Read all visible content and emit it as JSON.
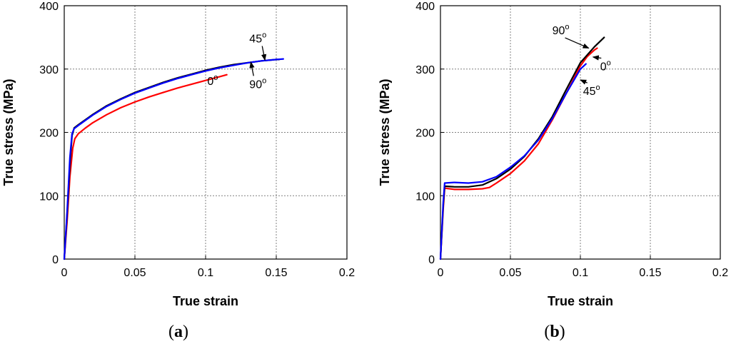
{
  "chart_data": [
    {
      "type": "line",
      "panel_label": "a",
      "xlabel": "True strain",
      "ylabel": "True stress (MPa)",
      "xlim": [
        0,
        0.2
      ],
      "ylim": [
        0,
        400
      ],
      "xticks": [
        0,
        0.05,
        0.1,
        0.15,
        0.2
      ],
      "xtick_labels": [
        "0",
        "0.05",
        "0.1",
        "0.15",
        "0.2"
      ],
      "yticks": [
        0,
        100,
        200,
        300,
        400
      ],
      "ytick_labels": [
        "0",
        "100",
        "200",
        "300",
        "400"
      ],
      "grid": true,
      "series": [
        {
          "name": "0",
          "color": "#ff0000",
          "points": [
            [
              0,
              0
            ],
            [
              0.002,
              60
            ],
            [
              0.004,
              130
            ],
            [
              0.006,
              175
            ],
            [
              0.0075,
              190
            ],
            [
              0.01,
              198
            ],
            [
              0.015,
              207
            ],
            [
              0.02,
              215
            ],
            [
              0.03,
              228
            ],
            [
              0.04,
              239
            ],
            [
              0.05,
              248
            ],
            [
              0.06,
              256
            ],
            [
              0.07,
              263
            ],
            [
              0.08,
              270
            ],
            [
              0.09,
              276
            ],
            [
              0.1,
              282
            ],
            [
              0.11,
              288
            ],
            [
              0.115,
              291
            ]
          ]
        },
        {
          "name": "90",
          "color": "#000000",
          "points": [
            [
              0,
              0
            ],
            [
              0.002,
              70
            ],
            [
              0.004,
              150
            ],
            [
              0.0055,
              195
            ],
            [
              0.007,
              207
            ],
            [
              0.01,
              212
            ],
            [
              0.02,
              228
            ],
            [
              0.03,
              242
            ],
            [
              0.04,
              253
            ],
            [
              0.05,
              263
            ],
            [
              0.06,
              271
            ],
            [
              0.07,
              279
            ],
            [
              0.08,
              286
            ],
            [
              0.09,
              292
            ],
            [
              0.1,
              298
            ],
            [
              0.11,
              303
            ],
            [
              0.12,
              307
            ],
            [
              0.13,
              310
            ],
            [
              0.14,
              313
            ],
            [
              0.15,
              315
            ],
            [
              0.152,
              315
            ]
          ]
        },
        {
          "name": "45",
          "color": "#0000ff",
          "points": [
            [
              0,
              0
            ],
            [
              0.002,
              75
            ],
            [
              0.004,
              160
            ],
            [
              0.0055,
              198
            ],
            [
              0.007,
              206
            ],
            [
              0.01,
              211
            ],
            [
              0.02,
              227
            ],
            [
              0.03,
              241
            ],
            [
              0.04,
              252
            ],
            [
              0.05,
              262
            ],
            [
              0.06,
              270
            ],
            [
              0.07,
              278
            ],
            [
              0.08,
              285
            ],
            [
              0.09,
              291
            ],
            [
              0.1,
              297
            ],
            [
              0.11,
              302
            ],
            [
              0.12,
              306
            ],
            [
              0.13,
              310
            ],
            [
              0.14,
              313
            ],
            [
              0.15,
              315
            ],
            [
              0.155,
              316
            ]
          ]
        }
      ],
      "annotations": [
        {
          "label": "45",
          "superscript": "o",
          "x": 0.137,
          "y": 342,
          "arrow_to": [
            0.142,
            314
          ]
        },
        {
          "label": "90",
          "superscript": "o",
          "x": 0.137,
          "y": 270,
          "arrow_to": [
            0.132,
            311
          ]
        },
        {
          "label": "0",
          "superscript": "o",
          "x": 0.105,
          "y": 275
        }
      ]
    },
    {
      "type": "line",
      "panel_label": "b",
      "xlabel": "True strain",
      "ylabel": "True stress (MPa)",
      "xlim": [
        0,
        0.2
      ],
      "ylim": [
        0,
        400
      ],
      "xticks": [
        0,
        0.05,
        0.1,
        0.15,
        0.2
      ],
      "xtick_labels": [
        "0",
        "0.05",
        "0.1",
        "0.15",
        "0.2"
      ],
      "yticks": [
        0,
        100,
        200,
        300,
        400
      ],
      "ytick_labels": [
        "0",
        "100",
        "200",
        "300",
        "400"
      ],
      "grid": true,
      "series": [
        {
          "name": "0",
          "color": "#ff0000",
          "points": [
            [
              0,
              0
            ],
            [
              0.002,
              80
            ],
            [
              0.003,
              112
            ],
            [
              0.01,
              110
            ],
            [
              0.02,
              110
            ],
            [
              0.03,
              111
            ],
            [
              0.035,
              113
            ],
            [
              0.04,
              120
            ],
            [
              0.05,
              135
            ],
            [
              0.06,
              155
            ],
            [
              0.07,
              182
            ],
            [
              0.08,
              220
            ],
            [
              0.09,
              262
            ],
            [
              0.1,
              305
            ],
            [
              0.105,
              320
            ],
            [
              0.11,
              330
            ],
            [
              0.112,
              333
            ]
          ]
        },
        {
          "name": "90",
          "color": "#000000",
          "points": [
            [
              0,
              0
            ],
            [
              0.002,
              85
            ],
            [
              0.003,
              115
            ],
            [
              0.01,
              114
            ],
            [
              0.02,
              114
            ],
            [
              0.03,
              117
            ],
            [
              0.04,
              127
            ],
            [
              0.05,
              142
            ],
            [
              0.06,
              162
            ],
            [
              0.07,
              190
            ],
            [
              0.08,
              225
            ],
            [
              0.09,
              268
            ],
            [
              0.1,
              310
            ],
            [
              0.11,
              335
            ],
            [
              0.117,
              350
            ]
          ]
        },
        {
          "name": "45",
          "color": "#0000ff",
          "points": [
            [
              0,
              0
            ],
            [
              0.002,
              90
            ],
            [
              0.003,
              120
            ],
            [
              0.01,
              121
            ],
            [
              0.02,
              120
            ],
            [
              0.03,
              122
            ],
            [
              0.04,
              130
            ],
            [
              0.05,
              145
            ],
            [
              0.06,
              163
            ],
            [
              0.07,
              188
            ],
            [
              0.08,
              222
            ],
            [
              0.09,
              262
            ],
            [
              0.1,
              300
            ],
            [
              0.104,
              308
            ]
          ]
        }
      ],
      "annotations": [
        {
          "label": "90",
          "superscript": "o",
          "x": 0.086,
          "y": 355,
          "arrow_to": [
            0.106,
            333
          ]
        },
        {
          "label": "0",
          "superscript": "o",
          "x": 0.118,
          "y": 298,
          "arrow_to": [
            0.109,
            319
          ]
        },
        {
          "label": "45",
          "superscript": "o",
          "x": 0.108,
          "y": 259,
          "arrow_to": [
            0.1,
            283
          ]
        }
      ]
    }
  ]
}
